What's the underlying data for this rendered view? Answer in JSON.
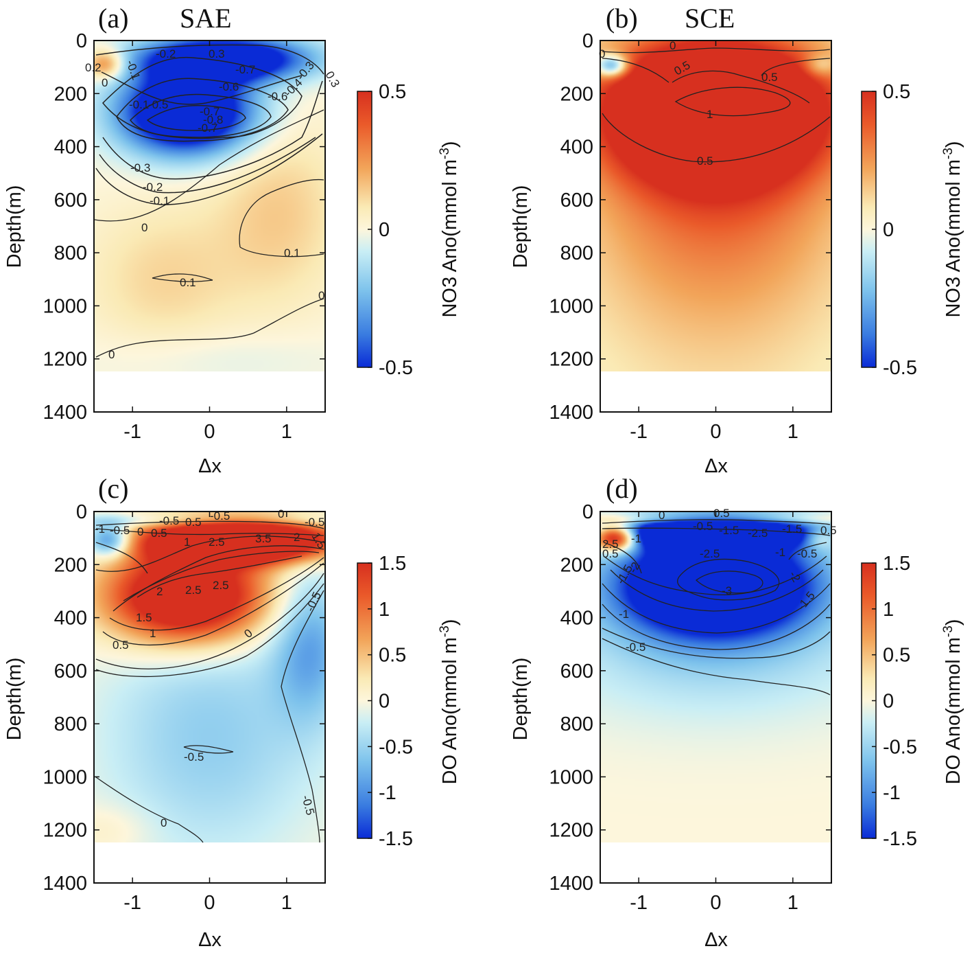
{
  "figure_type": "four-panel composite-eddy vertical section",
  "chart_data": [
    {
      "type": "heatmap",
      "panel": "(a)",
      "title": "SAE",
      "xlabel": "Δx",
      "ylabel": "Depth(m)",
      "xlim": [
        -1.5,
        1.5
      ],
      "ylim": [
        0,
        1400
      ],
      "y_reversed": true,
      "data_depth_max": 1250,
      "xticks": [
        -1,
        0,
        1
      ],
      "yticks": [
        0,
        200,
        400,
        600,
        800,
        1000,
        1200,
        1400
      ],
      "colorbar": {
        "label": "NO3 Ano(mmol m",
        "label_sup": "-3",
        "label_close": ")",
        "range": [
          -0.5,
          0.5
        ],
        "ticks": [
          0.5,
          0,
          -0.5
        ]
      },
      "features": [
        {
          "x": 0.2,
          "y": 70,
          "value": -0.8,
          "sx": 0.75,
          "sy": 60,
          "note": "near-surface negative core"
        },
        {
          "x": -0.3,
          "y": 270,
          "value": -0.9,
          "sx": 0.6,
          "sy": 110
        },
        {
          "x": -1.35,
          "y": 90,
          "value": 0.35,
          "sx": 0.18,
          "sy": 40
        },
        {
          "x": 0.9,
          "y": 650,
          "value": 0.14,
          "sx": 0.6,
          "sy": 250
        },
        {
          "x": -0.6,
          "y": 900,
          "value": 0.12,
          "sx": 0.7,
          "sy": 200
        },
        {
          "x": 0,
          "y": 1200,
          "value": -0.05,
          "sx": 1.2,
          "sy": 80
        }
      ],
      "contour_labels": [
        "0.2",
        "-0.1",
        "0",
        "-0.2",
        "0.3",
        "-0.7",
        "-0.6",
        "-0.6",
        "-0.5",
        "-0.4",
        "-0.3",
        "0.3",
        "-0.7",
        "-0.8",
        "-0.7",
        "-0.1",
        "-0.3",
        "-0.2",
        "-0.1",
        "0",
        "0.1",
        "0.1",
        "0",
        "0"
      ]
    },
    {
      "type": "heatmap",
      "panel": "(b)",
      "title": "SCE",
      "xlabel": "Δx",
      "ylabel": "Depth(m)",
      "xlim": [
        -1.5,
        1.5
      ],
      "ylim": [
        0,
        1400
      ],
      "y_reversed": true,
      "data_depth_max": 1250,
      "xticks": [
        -1,
        0,
        1
      ],
      "yticks": [
        0,
        200,
        400,
        600,
        800,
        1000,
        1200,
        1400
      ],
      "colorbar": {
        "label": "NO3 Ano(mmol m",
        "label_sup": "-3",
        "label_close": ")",
        "range": [
          -0.5,
          0.5
        ],
        "ticks": [
          0.5,
          0,
          -0.5
        ]
      },
      "features": [
        {
          "x": 0,
          "y": 260,
          "value": 1.2,
          "sx": 0.95,
          "sy": 170
        },
        {
          "x": 0,
          "y": 500,
          "value": 0.3,
          "sx": 1.2,
          "sy": 350
        },
        {
          "x": 0,
          "y": 1000,
          "value": 0.1,
          "sx": 1.5,
          "sy": 500
        },
        {
          "x": -1.35,
          "y": 95,
          "value": -0.55,
          "sx": 0.15,
          "sy": 30
        },
        {
          "x": 1.35,
          "y": 95,
          "value": -0.2,
          "sx": 0.15,
          "sy": 30
        }
      ],
      "contour_labels": [
        "0",
        "0",
        "0.5",
        "0.5",
        "1",
        "0.5"
      ]
    },
    {
      "type": "heatmap",
      "panel": "(c)",
      "title": "",
      "xlabel": "Δx",
      "ylabel": "Depth(m)",
      "xlim": [
        -1.5,
        1.5
      ],
      "ylim": [
        0,
        1400
      ],
      "y_reversed": true,
      "data_depth_max": 1250,
      "xticks": [
        -1,
        0,
        1
      ],
      "yticks": [
        0,
        200,
        400,
        600,
        800,
        1000,
        1200,
        1400
      ],
      "colorbar": {
        "label": "DO Ano(mmol m",
        "label_sup": "-3",
        "label_close": ")",
        "range": [
          -1.5,
          1.5
        ],
        "ticks": [
          1.5,
          1,
          0.5,
          0,
          -0.5,
          -1,
          -1.5
        ]
      },
      "features": [
        {
          "x": 0.4,
          "y": 110,
          "value": 3.5,
          "sx": 0.8,
          "sy": 55
        },
        {
          "x": -0.3,
          "y": 320,
          "value": 2.6,
          "sx": 0.7,
          "sy": 120
        },
        {
          "x": -1.3,
          "y": 110,
          "value": -1.3,
          "sx": 0.2,
          "sy": 45
        },
        {
          "x": 0,
          "y": 35,
          "value": -0.5,
          "sx": 1.5,
          "sy": 18
        },
        {
          "x": 1.3,
          "y": 500,
          "value": -0.8,
          "sx": 0.35,
          "sy": 200
        },
        {
          "x": 0,
          "y": 850,
          "value": -0.55,
          "sx": 1,
          "sy": 330
        },
        {
          "x": -1.3,
          "y": 1200,
          "value": 0.2,
          "sx": 0.4,
          "sy": 70
        }
      ],
      "contour_labels": [
        "-0.5",
        "0.5",
        "-0.5",
        "0",
        "-0.5",
        "-1",
        "-0.5",
        "0",
        "0.5",
        "1",
        "2.5",
        "3.5",
        "2",
        "1.5",
        "2.5",
        "2",
        "2.5",
        "1.5",
        "1",
        "0.5",
        "0",
        "-0.5",
        "-0.5",
        "-0.5",
        "0"
      ]
    },
    {
      "type": "heatmap",
      "panel": "(d)",
      "title": "",
      "xlabel": "Δx",
      "ylabel": "Depth(m)",
      "xlim": [
        -1.5,
        1.5
      ],
      "ylim": [
        0,
        1400
      ],
      "y_reversed": true,
      "data_depth_max": 1250,
      "xticks": [
        -1,
        0,
        1
      ],
      "yticks": [
        0,
        200,
        400,
        600,
        800,
        1000,
        1200,
        1400
      ],
      "colorbar": {
        "label": "DO Ano(mmol m",
        "label_sup": "-3",
        "label_close": ")",
        "range": [
          -1.5,
          1.5
        ],
        "ticks": [
          1.5,
          1,
          0.5,
          0,
          -0.5,
          -1,
          -1.5
        ]
      },
      "features": [
        {
          "x": 0,
          "y": 270,
          "value": -3.2,
          "sx": 0.85,
          "sy": 130
        },
        {
          "x": 0,
          "y": 80,
          "value": -2.8,
          "sx": 0.9,
          "sy": 40
        },
        {
          "x": 0,
          "y": 500,
          "value": -0.5,
          "sx": 1.5,
          "sy": 200
        },
        {
          "x": -1.3,
          "y": 100,
          "value": 2.7,
          "sx": 0.2,
          "sy": 35
        },
        {
          "x": 1.35,
          "y": 100,
          "value": 0.8,
          "sx": 0.15,
          "sy": 30
        },
        {
          "x": 0,
          "y": 30,
          "value": 0.6,
          "sx": 1.5,
          "sy": 14
        }
      ],
      "contour_labels": [
        "0",
        "0.5",
        "-0.5",
        "-1.5",
        "-2.5",
        "-1.5",
        "0.5",
        "2.5",
        "0.5",
        "-1",
        "-1.5",
        "-2",
        "-2.5",
        "-1",
        "-0.5",
        "-2",
        "-3",
        "-1.5",
        "-1",
        "-0.5"
      ]
    }
  ]
}
